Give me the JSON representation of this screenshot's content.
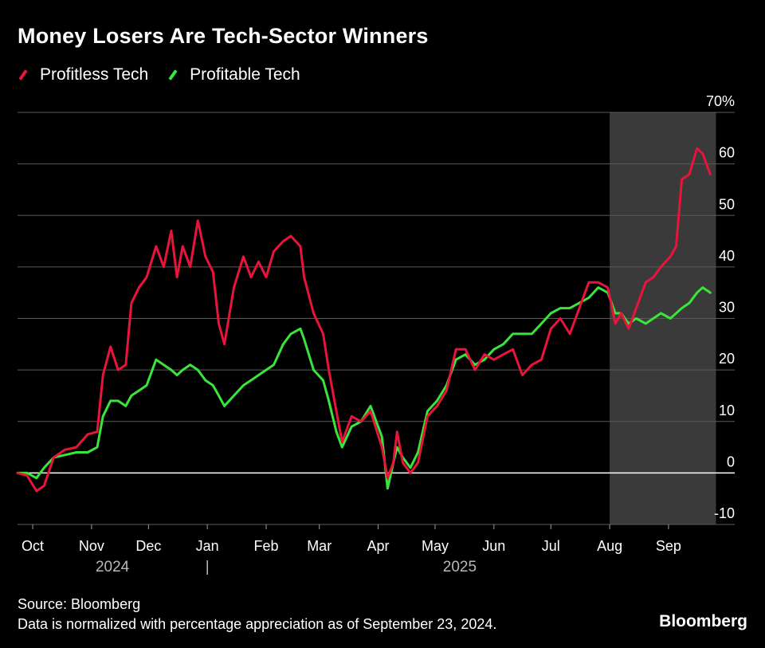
{
  "chart_data": {
    "type": "line",
    "title": "Money Losers Are Tech-Sector Winners",
    "ylabel": "",
    "xlabel": "",
    "y_unit_label": "70%",
    "ylim": [
      -10,
      70
    ],
    "xlim": [
      "2024-09-23",
      "2025-09-30"
    ],
    "y_ticks": [
      "70%",
      "60",
      "50",
      "40",
      "30",
      "20",
      "10",
      "0",
      "-10"
    ],
    "y_tick_values": [
      70,
      60,
      50,
      40,
      30,
      20,
      10,
      0,
      -10
    ],
    "x_ticks": [
      {
        "label": "Oct",
        "date": "2024-10-01"
      },
      {
        "label": "Nov",
        "date": "2024-11-01"
      },
      {
        "label": "Dec",
        "date": "2024-12-01"
      },
      {
        "label": "Jan",
        "date": "2025-01-01"
      },
      {
        "label": "Feb",
        "date": "2025-02-01"
      },
      {
        "label": "Mar",
        "date": "2025-03-01"
      },
      {
        "label": "Apr",
        "date": "2025-04-01"
      },
      {
        "label": "May",
        "date": "2025-05-01"
      },
      {
        "label": "Jun",
        "date": "2025-06-01"
      },
      {
        "label": "Jul",
        "date": "2025-07-01"
      },
      {
        "label": "Aug",
        "date": "2025-08-01"
      },
      {
        "label": "Sep",
        "date": "2025-09-01"
      }
    ],
    "year_labels": [
      {
        "label": "2024",
        "date": "2024-11-12"
      },
      {
        "label": "|",
        "date": "2025-01-01"
      },
      {
        "label": "2025",
        "date": "2025-05-14"
      }
    ],
    "shaded_region": {
      "start": "2025-08-01",
      "end": "2025-09-26"
    },
    "series": [
      {
        "name": "Profitless Tech",
        "color": "#e8143c",
        "points": [
          [
            "2024-09-23",
            0
          ],
          [
            "2024-09-28",
            -0.5
          ],
          [
            "2024-10-03",
            -3.5
          ],
          [
            "2024-10-07",
            -2.5
          ],
          [
            "2024-10-12",
            3
          ],
          [
            "2024-10-18",
            4.5
          ],
          [
            "2024-10-24",
            5
          ],
          [
            "2024-10-30",
            7.5
          ],
          [
            "2024-11-04",
            8
          ],
          [
            "2024-11-07",
            19
          ],
          [
            "2024-11-11",
            24.5
          ],
          [
            "2024-11-15",
            20
          ],
          [
            "2024-11-19",
            21
          ],
          [
            "2024-11-22",
            33
          ],
          [
            "2024-11-26",
            36
          ],
          [
            "2024-11-30",
            38
          ],
          [
            "2024-12-05",
            44
          ],
          [
            "2024-12-09",
            40
          ],
          [
            "2024-12-13",
            47
          ],
          [
            "2024-12-16",
            38
          ],
          [
            "2024-12-19",
            44
          ],
          [
            "2024-12-23",
            40
          ],
          [
            "2024-12-27",
            49
          ],
          [
            "2024-12-31",
            42
          ],
          [
            "2025-01-04",
            39
          ],
          [
            "2025-01-07",
            29
          ],
          [
            "2025-01-10",
            25
          ],
          [
            "2025-01-15",
            36
          ],
          [
            "2025-01-20",
            42
          ],
          [
            "2025-01-24",
            38
          ],
          [
            "2025-01-28",
            41
          ],
          [
            "2025-02-01",
            38
          ],
          [
            "2025-02-05",
            43
          ],
          [
            "2025-02-10",
            45
          ],
          [
            "2025-02-14",
            46
          ],
          [
            "2025-02-19",
            44
          ],
          [
            "2025-02-21",
            38
          ],
          [
            "2025-02-26",
            31
          ],
          [
            "2025-03-03",
            27
          ],
          [
            "2025-03-06",
            20
          ],
          [
            "2025-03-10",
            12
          ],
          [
            "2025-03-13",
            6
          ],
          [
            "2025-03-18",
            11
          ],
          [
            "2025-03-23",
            10
          ],
          [
            "2025-03-28",
            12
          ],
          [
            "2025-04-03",
            5
          ],
          [
            "2025-04-06",
            -1
          ],
          [
            "2025-04-09",
            2
          ],
          [
            "2025-04-11",
            8
          ],
          [
            "2025-04-14",
            2
          ],
          [
            "2025-04-18",
            0
          ],
          [
            "2025-04-22",
            2
          ],
          [
            "2025-04-27",
            11
          ],
          [
            "2025-05-02",
            13
          ],
          [
            "2025-05-07",
            16
          ],
          [
            "2025-05-12",
            24
          ],
          [
            "2025-05-17",
            24
          ],
          [
            "2025-05-22",
            20
          ],
          [
            "2025-05-27",
            23
          ],
          [
            "2025-06-01",
            22
          ],
          [
            "2025-06-06",
            23
          ],
          [
            "2025-06-11",
            24
          ],
          [
            "2025-06-16",
            19
          ],
          [
            "2025-06-21",
            21
          ],
          [
            "2025-06-26",
            22
          ],
          [
            "2025-07-01",
            28
          ],
          [
            "2025-07-06",
            30
          ],
          [
            "2025-07-11",
            27
          ],
          [
            "2025-07-16",
            32
          ],
          [
            "2025-07-21",
            37
          ],
          [
            "2025-07-26",
            37
          ],
          [
            "2025-07-31",
            36
          ],
          [
            "2025-08-04",
            29
          ],
          [
            "2025-08-07",
            31
          ],
          [
            "2025-08-11",
            28
          ],
          [
            "2025-08-15",
            32
          ],
          [
            "2025-08-20",
            37
          ],
          [
            "2025-08-24",
            38
          ],
          [
            "2025-08-28",
            40
          ],
          [
            "2025-09-02",
            42
          ],
          [
            "2025-09-05",
            44
          ],
          [
            "2025-09-08",
            57
          ],
          [
            "2025-09-12",
            58
          ],
          [
            "2025-09-16",
            63
          ],
          [
            "2025-09-19",
            62
          ],
          [
            "2025-09-23",
            58
          ]
        ]
      },
      {
        "name": "Profitable Tech",
        "color": "#39e53a",
        "points": [
          [
            "2024-09-23",
            0
          ],
          [
            "2024-09-28",
            0
          ],
          [
            "2024-10-03",
            -1
          ],
          [
            "2024-10-07",
            1
          ],
          [
            "2024-10-12",
            3
          ],
          [
            "2024-10-18",
            3.5
          ],
          [
            "2024-10-24",
            4
          ],
          [
            "2024-10-30",
            4
          ],
          [
            "2024-11-04",
            5
          ],
          [
            "2024-11-07",
            11
          ],
          [
            "2024-11-11",
            14
          ],
          [
            "2024-11-15",
            14
          ],
          [
            "2024-11-19",
            13
          ],
          [
            "2024-11-22",
            15
          ],
          [
            "2024-11-26",
            16
          ],
          [
            "2024-11-30",
            17
          ],
          [
            "2024-12-05",
            22
          ],
          [
            "2024-12-09",
            21
          ],
          [
            "2024-12-13",
            20
          ],
          [
            "2024-12-16",
            19
          ],
          [
            "2024-12-19",
            20
          ],
          [
            "2024-12-23",
            21
          ],
          [
            "2024-12-27",
            20
          ],
          [
            "2024-12-31",
            18
          ],
          [
            "2025-01-04",
            17
          ],
          [
            "2025-01-07",
            15
          ],
          [
            "2025-01-10",
            13
          ],
          [
            "2025-01-15",
            15
          ],
          [
            "2025-01-20",
            17
          ],
          [
            "2025-01-24",
            18
          ],
          [
            "2025-01-28",
            19
          ],
          [
            "2025-02-01",
            20
          ],
          [
            "2025-02-05",
            21
          ],
          [
            "2025-02-10",
            25
          ],
          [
            "2025-02-14",
            27
          ],
          [
            "2025-02-19",
            28
          ],
          [
            "2025-02-21",
            26
          ],
          [
            "2025-02-26",
            20
          ],
          [
            "2025-03-03",
            18
          ],
          [
            "2025-03-06",
            14
          ],
          [
            "2025-03-10",
            8
          ],
          [
            "2025-03-13",
            5
          ],
          [
            "2025-03-18",
            9
          ],
          [
            "2025-03-23",
            10
          ],
          [
            "2025-03-28",
            13
          ],
          [
            "2025-04-03",
            7
          ],
          [
            "2025-04-06",
            -3
          ],
          [
            "2025-04-09",
            2
          ],
          [
            "2025-04-11",
            5
          ],
          [
            "2025-04-14",
            3
          ],
          [
            "2025-04-18",
            1
          ],
          [
            "2025-04-22",
            4
          ],
          [
            "2025-04-27",
            12
          ],
          [
            "2025-05-02",
            14
          ],
          [
            "2025-05-07",
            17
          ],
          [
            "2025-05-12",
            22
          ],
          [
            "2025-05-17",
            23
          ],
          [
            "2025-05-22",
            21
          ],
          [
            "2025-05-27",
            22
          ],
          [
            "2025-06-01",
            24
          ],
          [
            "2025-06-06",
            25
          ],
          [
            "2025-06-11",
            27
          ],
          [
            "2025-06-16",
            27
          ],
          [
            "2025-06-21",
            27
          ],
          [
            "2025-06-26",
            29
          ],
          [
            "2025-07-01",
            31
          ],
          [
            "2025-07-06",
            32
          ],
          [
            "2025-07-11",
            32
          ],
          [
            "2025-07-16",
            33
          ],
          [
            "2025-07-21",
            34
          ],
          [
            "2025-07-26",
            36
          ],
          [
            "2025-07-31",
            35
          ],
          [
            "2025-08-04",
            31
          ],
          [
            "2025-08-07",
            31
          ],
          [
            "2025-08-11",
            29
          ],
          [
            "2025-08-15",
            30
          ],
          [
            "2025-08-20",
            29
          ],
          [
            "2025-08-24",
            30
          ],
          [
            "2025-08-28",
            31
          ],
          [
            "2025-09-02",
            30
          ],
          [
            "2025-09-05",
            31
          ],
          [
            "2025-09-08",
            32
          ],
          [
            "2025-09-12",
            33
          ],
          [
            "2025-09-16",
            35
          ],
          [
            "2025-09-19",
            36
          ],
          [
            "2025-09-23",
            35
          ]
        ]
      }
    ]
  },
  "footer": {
    "source": "Source: Bloomberg",
    "note": "Data is normalized with percentage appreciation as of September 23, 2024.",
    "brand": "Bloomberg"
  }
}
